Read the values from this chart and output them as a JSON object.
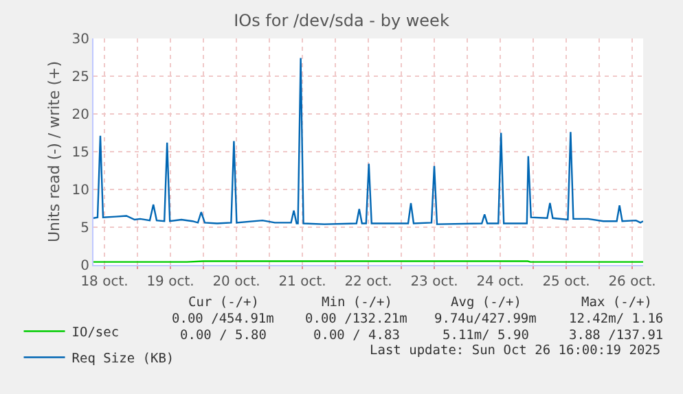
{
  "chart_data": {
    "type": "line",
    "title": "IOs for /dev/sda - by week",
    "ylabel": "Units read (-) / write (+)",
    "xlim": [
      "2025-10-18T08:00",
      "2025-10-26T16:00"
    ],
    "xticks": [
      {
        "value": "2025-10-18T12:00",
        "label": "18 oct."
      },
      {
        "value": "2025-10-19T00:00",
        "label": null
      },
      {
        "value": "2025-10-19T12:00",
        "label": "19 oct."
      },
      {
        "value": "2025-10-20T00:00",
        "label": null
      },
      {
        "value": "2025-10-20T12:00",
        "label": "20 oct."
      },
      {
        "value": "2025-10-21T00:00",
        "label": null
      },
      {
        "value": "2025-10-21T12:00",
        "label": "21 oct."
      },
      {
        "value": "2025-10-22T00:00",
        "label": null
      },
      {
        "value": "2025-10-22T12:00",
        "label": "22 oct."
      },
      {
        "value": "2025-10-23T00:00",
        "label": null
      },
      {
        "value": "2025-10-23T12:00",
        "label": "23 oct."
      },
      {
        "value": "2025-10-24T00:00",
        "label": null
      },
      {
        "value": "2025-10-24T12:00",
        "label": "24 oct."
      },
      {
        "value": "2025-10-25T00:00",
        "label": null
      },
      {
        "value": "2025-10-25T12:00",
        "label": "25 oct."
      },
      {
        "value": "2025-10-26T00:00",
        "label": null
      },
      {
        "value": "2025-10-26T12:00",
        "label": "26 oct."
      }
    ],
    "ylim": [
      0,
      30
    ],
    "yticks": [
      0,
      5,
      10,
      15,
      20,
      25,
      30
    ],
    "grid": true,
    "legend": "bottom left",
    "line_style": "solid",
    "series": [
      {
        "name": "IO/sec",
        "color": "#00cc00",
        "x": [
          "2025-10-18T08:00",
          "2025-10-19T18:00",
          "2025-10-20T00:00",
          "2025-10-24T22:00",
          "2025-10-24T23:00",
          "2025-10-26T16:00"
        ],
        "values": [
          0.4,
          0.4,
          0.5,
          0.5,
          0.4,
          0.4
        ]
      },
      {
        "name": "Req Size (KB)",
        "color": "#0066b3",
        "x": [
          "2025-10-18T08:00",
          "2025-10-18T09:30",
          "2025-10-18T10:30",
          "2025-10-18T11:30",
          "2025-10-18T16:00",
          "2025-10-18T20:00",
          "2025-10-18T23:00",
          "2025-10-19T01:00",
          "2025-10-19T04:30",
          "2025-10-19T05:48",
          "2025-10-19T07:00",
          "2025-10-19T09:48",
          "2025-10-19T10:48",
          "2025-10-19T11:48",
          "2025-10-19T16:00",
          "2025-10-19T20:00",
          "2025-10-19T22:00",
          "2025-10-19T23:12",
          "2025-10-20T00:30",
          "2025-10-20T05:00",
          "2025-10-20T10:06",
          "2025-10-20T11:06",
          "2025-10-20T12:06",
          "2025-10-20T21:30",
          "2025-10-21T02:00",
          "2025-10-21T07:54",
          "2025-10-21T08:54",
          "2025-10-21T09:54",
          "2025-10-21T10:24",
          "2025-10-21T11:24",
          "2025-10-21T12:24",
          "2025-10-21T20:00",
          "2025-10-22T07:42",
          "2025-10-22T08:42",
          "2025-10-22T09:42",
          "2025-10-22T11:12",
          "2025-10-22T12:12",
          "2025-10-22T13:12",
          "2025-10-23T02:30",
          "2025-10-23T03:30",
          "2025-10-23T04:30",
          "2025-10-23T11:00",
          "2025-10-23T12:00",
          "2025-10-23T13:00",
          "2025-10-24T05:18",
          "2025-10-24T06:18",
          "2025-10-24T07:18",
          "2025-10-24T11:18",
          "2025-10-24T12:18",
          "2025-10-24T13:18",
          "2025-10-24T21:42",
          "2025-10-24T22:12",
          "2025-10-24T23:12",
          "2025-10-25T05:06",
          "2025-10-25T06:06",
          "2025-10-25T07:06",
          "2025-10-25T12:36",
          "2025-10-25T13:36",
          "2025-10-25T14:36",
          "2025-10-25T20:00",
          "2025-10-26T01:30",
          "2025-10-26T06:24",
          "2025-10-26T07:24",
          "2025-10-26T08:24",
          "2025-10-26T13:24",
          "2025-10-26T15:00",
          "2025-10-26T16:00"
        ],
        "values": [
          6.2,
          6.3,
          17.1,
          6.3,
          6.4,
          6.5,
          6.0,
          6.1,
          5.9,
          8.0,
          5.9,
          5.8,
          16.2,
          5.8,
          6.0,
          5.8,
          5.6,
          7.0,
          5.6,
          5.5,
          5.6,
          16.4,
          5.6,
          5.9,
          5.6,
          5.6,
          7.2,
          5.5,
          5.5,
          27.4,
          5.5,
          5.4,
          5.5,
          7.4,
          5.5,
          5.5,
          13.4,
          5.5,
          5.5,
          8.2,
          5.5,
          5.6,
          13.1,
          5.4,
          5.5,
          6.7,
          5.5,
          5.5,
          17.5,
          5.5,
          5.5,
          14.4,
          6.3,
          6.2,
          8.2,
          6.2,
          6.0,
          17.6,
          6.1,
          6.1,
          5.8,
          5.8,
          7.9,
          5.8,
          5.9,
          5.6,
          5.8
        ]
      }
    ],
    "annotations": [
      "Cur (-/+)",
      "Min (-/+)",
      "Avg (-/+)",
      "Max (-/+)",
      "0.00 /454.91m",
      "0.00 /132.21m",
      "9.74u/427.99m",
      "12.42m/ 1.16",
      "0.00 / 5.80",
      "0.00 / 4.83",
      "5.11m/ 5.90",
      "3.88 /137.91",
      "Last update: Sun Oct 26 16:00:19 2025"
    ]
  }
}
